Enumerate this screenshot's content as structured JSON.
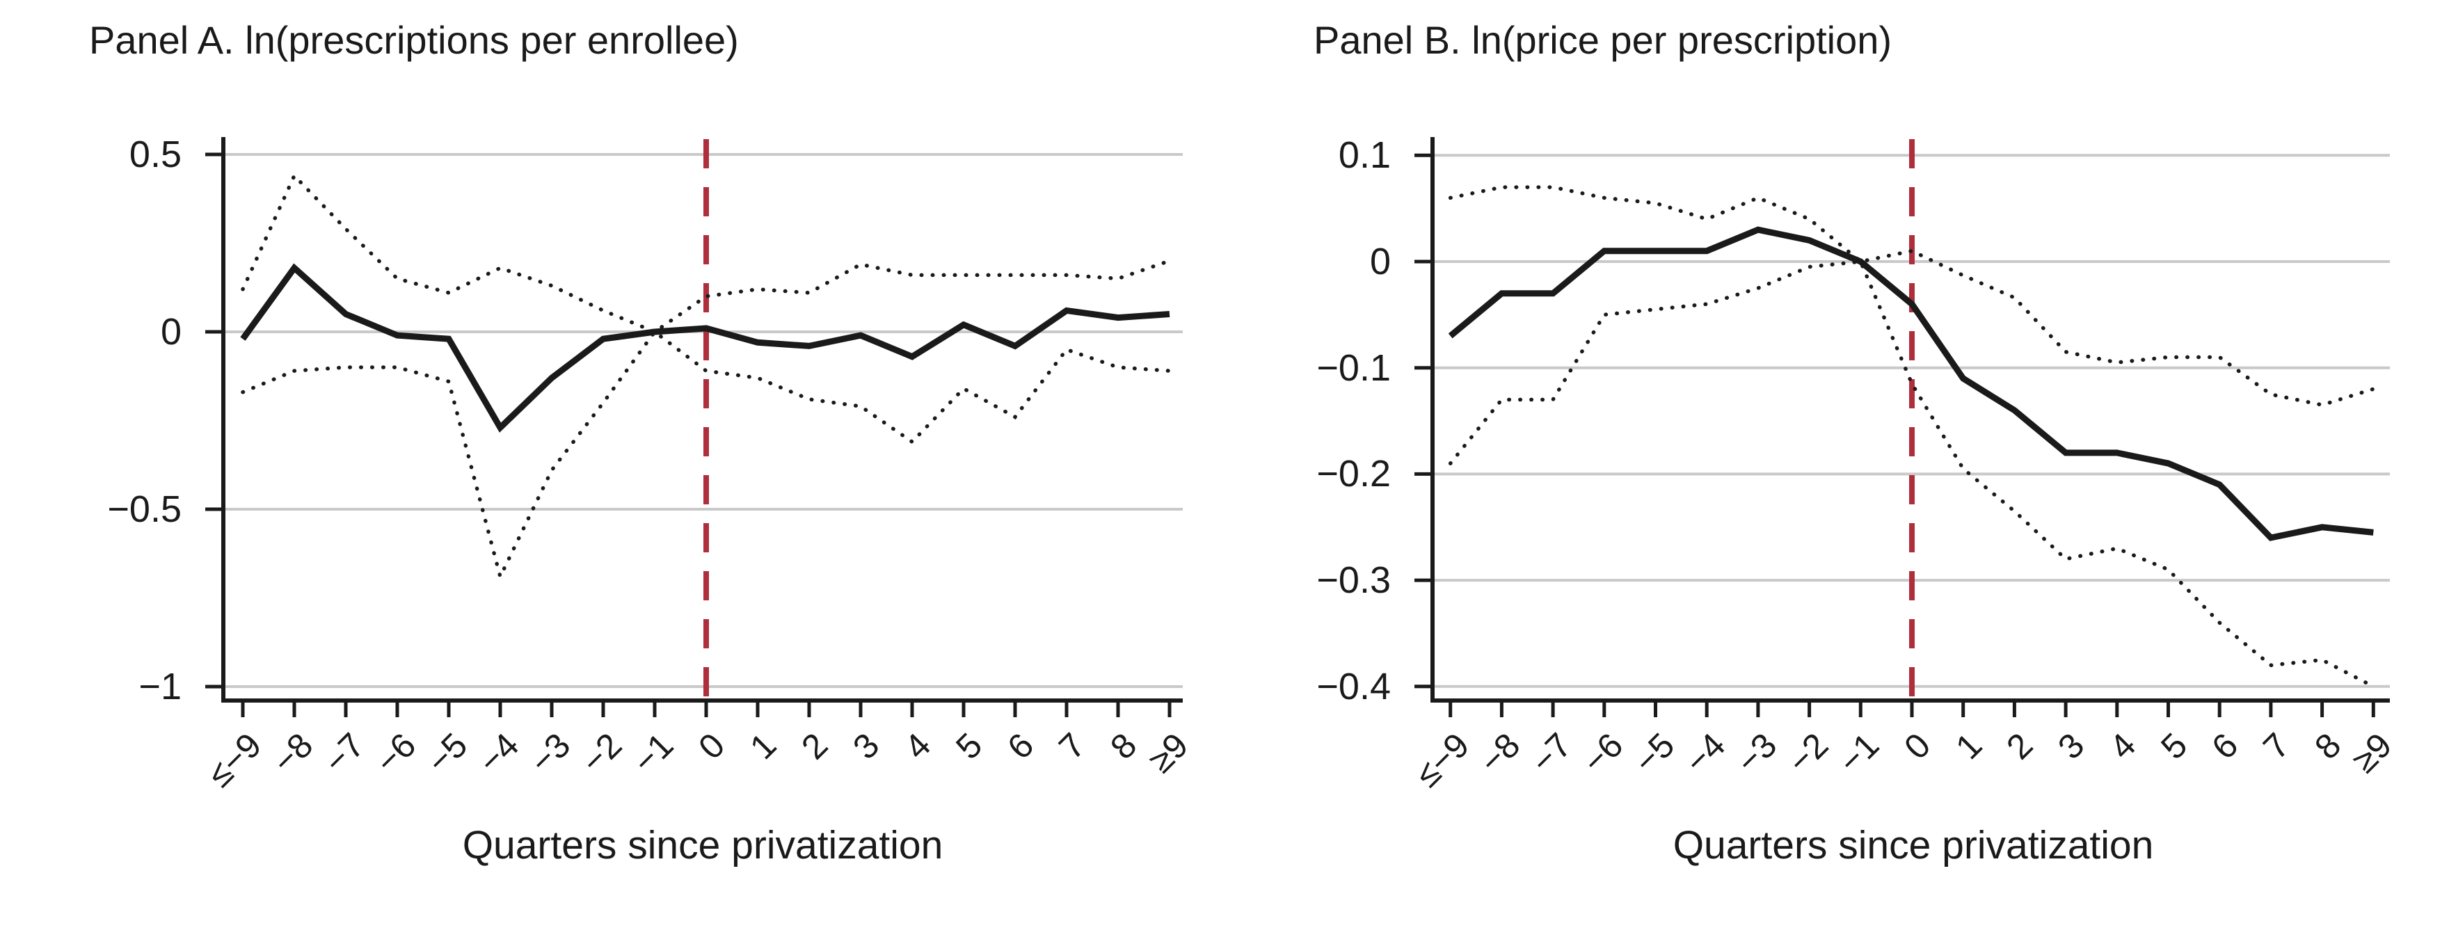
{
  "figure_xlabel": "Quarters since privatization",
  "colors": {
    "series": "#1a1a1a",
    "ci_dotted": "#1a1a1a",
    "event_line_red": "#AE2E3C",
    "gridline_gray": "#c9c9c9",
    "axis_black": "#1a1a1a"
  },
  "chart_data": [
    {
      "type": "line",
      "title": "Panel A. ln(prescriptions per enrollee)",
      "xlabel": "Quarters since privatization",
      "categories": [
        "≤−9",
        "−8",
        "−7",
        "−6",
        "−5",
        "−4",
        "−3",
        "−2",
        "−1",
        "0",
        "1",
        "2",
        "3",
        "4",
        "5",
        "6",
        "7",
        "8",
        "≥9"
      ],
      "series": [
        {
          "name": "point estimate",
          "style": "solid",
          "values": [
            -0.02,
            0.18,
            0.05,
            -0.01,
            -0.02,
            -0.27,
            -0.13,
            -0.02,
            0.0,
            0.01,
            -0.03,
            -0.04,
            -0.01,
            -0.07,
            0.02,
            -0.04,
            0.06,
            0.04,
            0.05
          ]
        },
        {
          "name": "upper 95% CI",
          "style": "dotted",
          "values": [
            0.12,
            0.44,
            0.29,
            0.15,
            0.11,
            0.18,
            0.13,
            0.06,
            0.0,
            0.1,
            0.12,
            0.11,
            0.19,
            0.16,
            0.16,
            0.16,
            0.16,
            0.15,
            0.2
          ]
        },
        {
          "name": "lower 95% CI",
          "style": "dotted",
          "values": [
            -0.17,
            -0.11,
            -0.1,
            -0.1,
            -0.14,
            -0.69,
            -0.39,
            -0.2,
            0.0,
            -0.11,
            -0.13,
            -0.19,
            -0.21,
            -0.31,
            -0.16,
            -0.24,
            -0.05,
            -0.1,
            -0.11
          ]
        }
      ],
      "ytick_values": [
        0.5,
        0,
        -0.5,
        -1
      ],
      "ytick_labels": [
        "0.5",
        "0",
        "−0.5",
        "−1"
      ],
      "ylim": [
        -1.04,
        0.54
      ],
      "event_line_at": "0",
      "grid": true,
      "legend": "none"
    },
    {
      "type": "line",
      "title": "Panel B. ln(price per prescription)",
      "xlabel": "Quarters since privatization",
      "categories": [
        "≤−9",
        "−8",
        "−7",
        "−6",
        "−5",
        "−4",
        "−3",
        "−2",
        "−1",
        "0",
        "1",
        "2",
        "3",
        "4",
        "5",
        "6",
        "7",
        "8",
        "≥9"
      ],
      "series": [
        {
          "name": "point estimate",
          "style": "solid",
          "values": [
            -0.07,
            -0.03,
            -0.03,
            0.01,
            0.01,
            0.01,
            0.03,
            0.02,
            0.0,
            -0.04,
            -0.11,
            -0.14,
            -0.18,
            -0.18,
            -0.19,
            -0.21,
            -0.26,
            -0.25,
            -0.255
          ]
        },
        {
          "name": "upper 95% CI",
          "style": "dotted",
          "values": [
            0.06,
            0.07,
            0.07,
            0.06,
            0.055,
            0.04,
            0.06,
            0.04,
            0.0,
            0.01,
            -0.013,
            -0.034,
            -0.085,
            -0.095,
            -0.09,
            -0.09,
            -0.125,
            -0.135,
            -0.12
          ]
        },
        {
          "name": "lower 95% CI",
          "style": "dotted",
          "values": [
            -0.19,
            -0.13,
            -0.13,
            -0.05,
            -0.045,
            -0.04,
            -0.025,
            -0.005,
            0.0,
            -0.115,
            -0.195,
            -0.235,
            -0.28,
            -0.27,
            -0.29,
            -0.34,
            -0.38,
            -0.375,
            -0.4
          ]
        }
      ],
      "ytick_values": [
        0.1,
        0,
        -0.1,
        -0.2,
        -0.3,
        -0.4
      ],
      "ytick_labels": [
        "0.1",
        "0",
        "−0.1",
        "−0.2",
        "−0.3",
        "−0.4"
      ],
      "ylim": [
        -0.413,
        0.115
      ],
      "event_line_at": "0",
      "grid": true,
      "legend": "none"
    }
  ]
}
